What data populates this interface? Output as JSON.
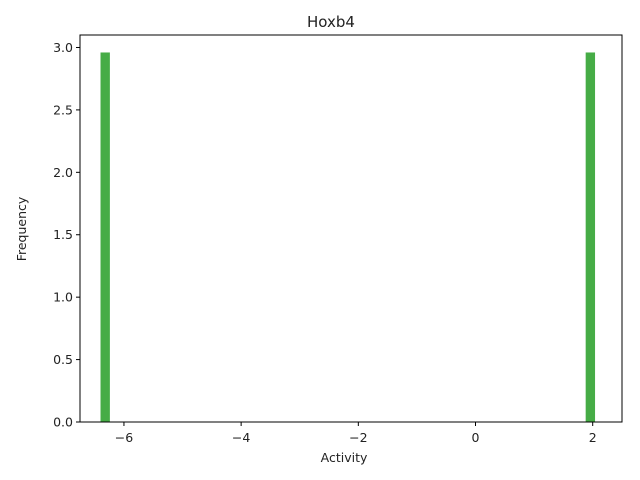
{
  "chart_data": {
    "type": "bar",
    "title": "Hoxb4",
    "xlabel": "Activity",
    "ylabel": "Frequency",
    "xlim": [
      -6.75,
      2.5
    ],
    "ylim": [
      0,
      3.1
    ],
    "xticks": [
      -6,
      -4,
      -2,
      0,
      2
    ],
    "xtick_labels": [
      "−6",
      "−4",
      "−2",
      "0",
      "2"
    ],
    "yticks": [
      0.0,
      0.5,
      1.0,
      1.5,
      2.0,
      2.5,
      3.0
    ],
    "ytick_labels": [
      "0.0",
      "0.5",
      "1.0",
      "1.5",
      "2.0",
      "2.5",
      "3.0"
    ],
    "bar_width": 0.16,
    "bars": [
      {
        "x": -6.32,
        "value": 2.96
      },
      {
        "x": 1.96,
        "value": 2.96
      }
    ],
    "bar_color": "#2ca02c",
    "bar_alpha": 0.88,
    "grid": false,
    "legend": "none"
  }
}
